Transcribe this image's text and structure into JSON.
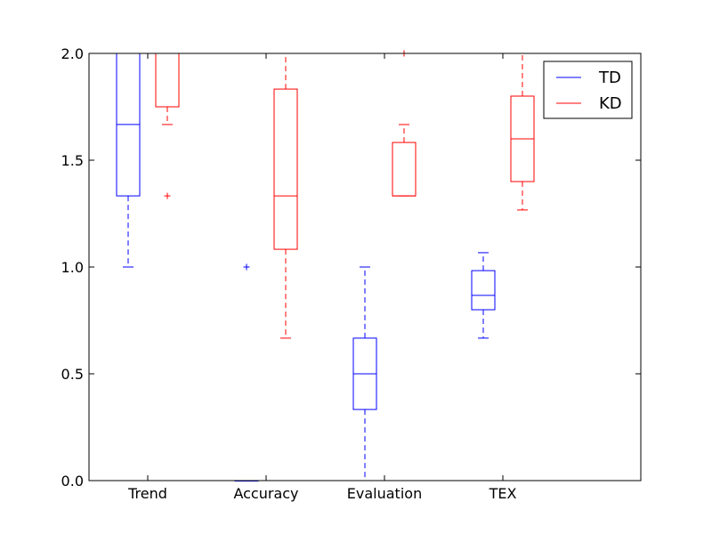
{
  "chart_data": {
    "type": "box",
    "categories": [
      "Trend",
      "Accuracy",
      "Evaluation",
      "TEX"
    ],
    "ylim": [
      0,
      2.0
    ],
    "yticks": [
      "0.0",
      "0.5",
      "1.0",
      "1.5",
      "2.0"
    ],
    "grid": false,
    "legend_position": "top-right",
    "series": [
      {
        "name": "TD",
        "color": "#0000ff",
        "boxes": [
          {
            "category": "Trend",
            "whisker_low": 1.0,
            "q1": 1.333,
            "median": 1.667,
            "q3": 2.0,
            "whisker_high": 2.0,
            "outliers": []
          },
          {
            "category": "Accuracy",
            "whisker_low": 0.0,
            "q1": 0.0,
            "median": 0.0,
            "q3": 0.0,
            "whisker_high": 0.0,
            "outliers": [
              1.0
            ]
          },
          {
            "category": "Evaluation",
            "whisker_low": 0.0,
            "q1": 0.333,
            "median": 0.5,
            "q3": 0.667,
            "whisker_high": 1.0,
            "outliers": []
          },
          {
            "category": "TEX",
            "whisker_low": 0.667,
            "q1": 0.8,
            "median": 0.867,
            "q3": 0.983,
            "whisker_high": 1.067,
            "outliers": []
          }
        ]
      },
      {
        "name": "KD",
        "color": "#ff0000",
        "boxes": [
          {
            "category": "Trend",
            "whisker_low": 1.667,
            "q1": 1.75,
            "median": 2.0,
            "q3": 2.0,
            "whisker_high": 2.0,
            "outliers": [
              1.333
            ]
          },
          {
            "category": "Accuracy",
            "whisker_low": 0.667,
            "q1": 1.083,
            "median": 1.333,
            "q3": 1.833,
            "whisker_high": 2.0,
            "outliers": []
          },
          {
            "category": "Evaluation",
            "whisker_low": 1.333,
            "q1": 1.333,
            "median": 1.333,
            "q3": 1.583,
            "whisker_high": 1.667,
            "outliers": [
              2.0
            ]
          },
          {
            "category": "TEX",
            "whisker_low": 1.267,
            "q1": 1.4,
            "median": 1.6,
            "q3": 1.8,
            "whisker_high": 2.0,
            "outliers": []
          }
        ]
      }
    ]
  }
}
